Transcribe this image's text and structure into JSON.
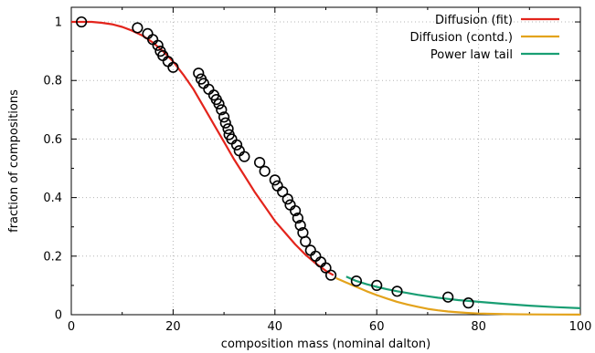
{
  "chart_data": {
    "type": "line",
    "title": "",
    "xlabel": "composition mass (nominal dalton)",
    "ylabel": "fraction of compositions",
    "xlim": [
      0,
      100
    ],
    "ylim": [
      0,
      1.05
    ],
    "x_ticks": [
      0,
      20,
      40,
      60,
      80,
      100
    ],
    "y_ticks": [
      0,
      0.2,
      0.4,
      0.6,
      0.8,
      1
    ],
    "x_tick_labels": [
      "0",
      "20",
      "40",
      "60",
      "80",
      "100"
    ],
    "y_tick_labels": [
      "0",
      "0.2",
      "0.4",
      "0.6",
      "0.8",
      "1"
    ],
    "grid": true,
    "legend_position": "top-right",
    "series": [
      {
        "name": "Diffusion (fit)",
        "color": "#e3241c",
        "style": "line",
        "x": [
          0,
          2,
          4,
          6,
          8,
          10,
          12,
          14,
          16,
          18,
          20,
          22,
          24,
          26,
          28,
          30,
          32,
          34,
          36,
          38,
          40,
          42,
          44,
          46,
          48,
          50,
          51.5
        ],
        "y": [
          1.0,
          1.0,
          1.0,
          0.997,
          0.992,
          0.983,
          0.97,
          0.953,
          0.93,
          0.9,
          0.865,
          0.82,
          0.77,
          0.71,
          0.65,
          0.59,
          0.53,
          0.475,
          0.42,
          0.37,
          0.32,
          0.28,
          0.24,
          0.205,
          0.175,
          0.15,
          0.135
        ]
      },
      {
        "name": "Diffusion (contd.)",
        "color": "#e3a31c",
        "style": "line",
        "x": [
          52,
          54,
          56,
          58,
          60,
          62,
          64,
          66,
          68,
          70,
          72,
          74,
          76,
          78,
          80,
          85,
          90,
          95,
          100
        ],
        "y": [
          0.125,
          0.11,
          0.095,
          0.08,
          0.067,
          0.055,
          0.044,
          0.035,
          0.027,
          0.02,
          0.015,
          0.011,
          0.008,
          0.006,
          0.004,
          0.002,
          0.001,
          0.0005,
          0.0002
        ]
      },
      {
        "name": "Power law tail",
        "color": "#199e73",
        "style": "line",
        "x": [
          54,
          56,
          58,
          60,
          62,
          64,
          66,
          68,
          70,
          72,
          74,
          76,
          78,
          80,
          85,
          90,
          95,
          100
        ],
        "y": [
          0.13,
          0.115,
          0.104,
          0.095,
          0.087,
          0.08,
          0.074,
          0.068,
          0.063,
          0.058,
          0.054,
          0.05,
          0.047,
          0.044,
          0.037,
          0.031,
          0.026,
          0.022
        ]
      },
      {
        "style": "markers",
        "color": "#000000",
        "x": [
          2,
          13,
          15,
          16,
          17,
          17.5,
          18,
          19,
          20,
          25,
          25.5,
          26,
          27,
          28,
          28.5,
          29,
          29.5,
          30,
          30.3,
          30.8,
          31,
          31.5,
          32.5,
          33,
          34,
          37,
          38,
          40,
          40.5,
          41.5,
          42.5,
          43,
          44,
          44.5,
          45,
          45.5,
          46,
          47,
          48,
          49,
          50,
          51,
          56,
          60,
          64,
          74,
          78
        ],
        "y": [
          1.0,
          0.98,
          0.96,
          0.94,
          0.92,
          0.9,
          0.885,
          0.865,
          0.845,
          0.825,
          0.805,
          0.79,
          0.77,
          0.75,
          0.735,
          0.72,
          0.7,
          0.675,
          0.655,
          0.635,
          0.615,
          0.6,
          0.58,
          0.56,
          0.54,
          0.52,
          0.49,
          0.46,
          0.44,
          0.42,
          0.395,
          0.375,
          0.355,
          0.33,
          0.305,
          0.28,
          0.25,
          0.22,
          0.2,
          0.18,
          0.16,
          0.135,
          0.115,
          0.1,
          0.08,
          0.06,
          0.04
        ]
      }
    ]
  }
}
